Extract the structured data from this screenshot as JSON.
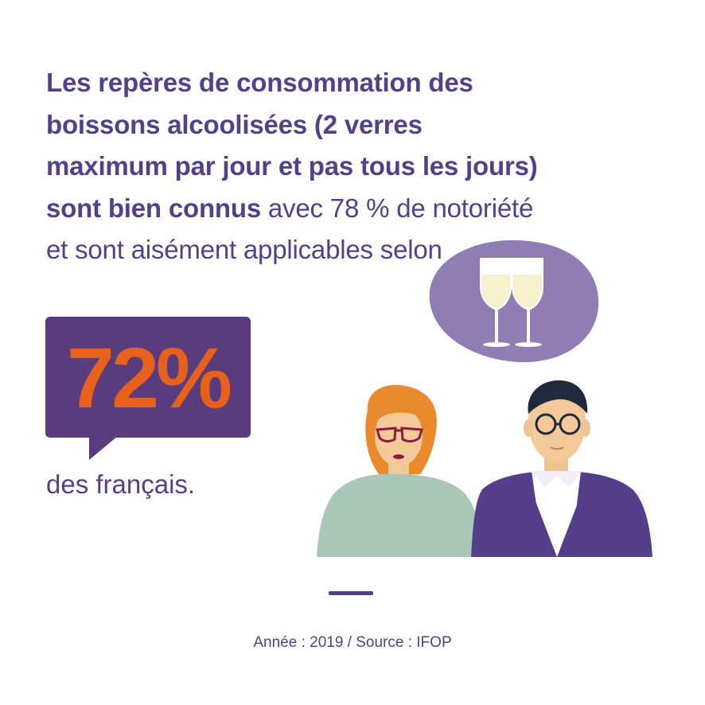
{
  "headline": {
    "bold_text": "Les repères de consommation des boissons alcoolisées (2 verres maximum par jour et pas tous les jours) sont bien connus",
    "regular_text": " avec 78 % de notoriété et sont aisément applicables selon"
  },
  "stat": {
    "value": "72%"
  },
  "subject": "des français.",
  "source": "Année : 2019 / Source : IFOP",
  "colors": {
    "primary": "#553f8a",
    "accent": "#e8611a",
    "bubble": "#583c7d",
    "thought_bubble": "#8f7db3"
  },
  "icons": [
    "wine-glasses-icon",
    "woman-illustration",
    "man-illustration"
  ]
}
